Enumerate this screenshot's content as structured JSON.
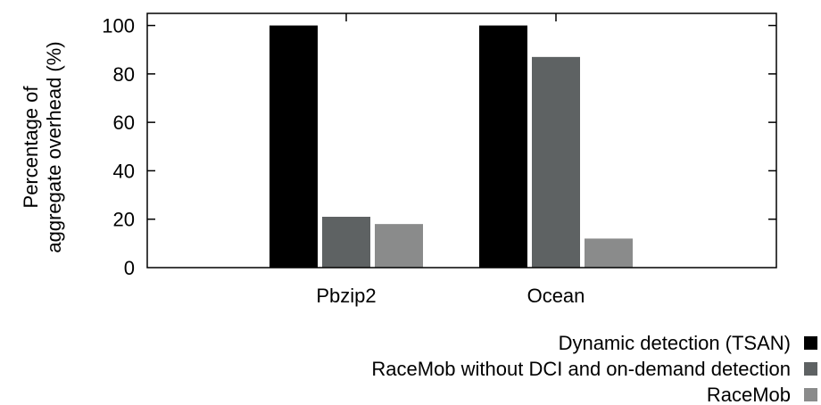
{
  "chart_data": {
    "type": "bar",
    "title": "",
    "xlabel": "",
    "ylabel": [
      "Percentage of",
      "aggregate overhead (%)"
    ],
    "ylim": [
      0,
      105
    ],
    "yticks": [
      0,
      20,
      40,
      60,
      80,
      100
    ],
    "categories": [
      "Pbzip2",
      "Ocean"
    ],
    "series": [
      {
        "name": "Dynamic detection (TSAN)",
        "color": "#000000",
        "values": [
          100,
          100
        ]
      },
      {
        "name": "RaceMob without DCI and on-demand detection",
        "color": "#5e6263",
        "values": [
          21,
          87
        ]
      },
      {
        "name": "RaceMob",
        "color": "#8a8b8b",
        "values": [
          18,
          12
        ]
      }
    ],
    "grid": false,
    "legend_position": "bottom-right"
  }
}
